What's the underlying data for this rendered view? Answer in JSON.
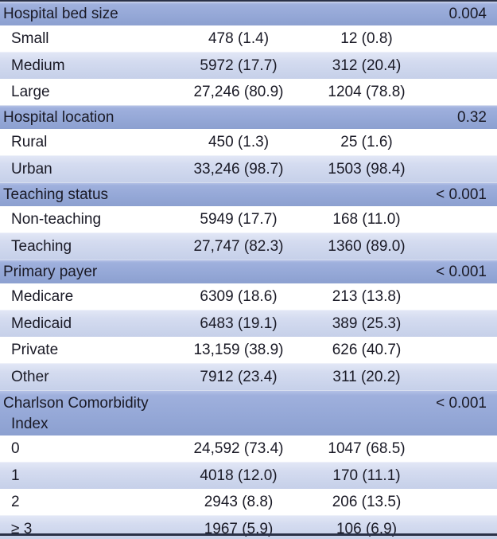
{
  "table": {
    "sections": [
      {
        "header": "Hospital bed size",
        "p_value": "0.004",
        "rows": [
          {
            "label": "Small",
            "v1": "478 (1.4)",
            "v2": "12 (0.8)"
          },
          {
            "label": "Medium",
            "v1": "5972 (17.7)",
            "v2": "312 (20.4)"
          },
          {
            "label": "Large",
            "v1": "27,246 (80.9)",
            "v2": "1204 (78.8)"
          }
        ]
      },
      {
        "header": "Hospital location",
        "p_value": "0.32",
        "rows": [
          {
            "label": "Rural",
            "v1": "450 (1.3)",
            "v2": "25 (1.6)"
          },
          {
            "label": "Urban",
            "v1": "33,246 (98.7)",
            "v2": "1503 (98.4)"
          }
        ]
      },
      {
        "header": "Teaching status",
        "p_value": "< 0.001",
        "rows": [
          {
            "label": "Non-teaching",
            "v1": "5949 (17.7)",
            "v2": "168 (11.0)"
          },
          {
            "label": "Teaching",
            "v1": "27,747 (82.3)",
            "v2": "1360 (89.0)"
          }
        ]
      },
      {
        "header": "Primary payer",
        "p_value": "< 0.001",
        "rows": [
          {
            "label": "Medicare",
            "v1": "6309 (18.6)",
            "v2": "213 (13.8)"
          },
          {
            "label": "Medicaid",
            "v1": "6483 (19.1)",
            "v2": "389 (25.3)"
          },
          {
            "label": "Private",
            "v1": "13,159 (38.9)",
            "v2": "626 (40.7)"
          },
          {
            "label": "Other",
            "v1": "7912 (23.4)",
            "v2": "311 (20.2)"
          }
        ]
      },
      {
        "header": "Charlson Comorbidity",
        "header_line2": "Index",
        "p_value": "< 0.001",
        "rows": [
          {
            "label": "0",
            "v1": "24,592 (73.4)",
            "v2": "1047 (68.5)"
          },
          {
            "label": "1",
            "v1": "4018 (12.0)",
            "v2": "170 (11.1)"
          },
          {
            "label": "2",
            "v1": "2943 (8.8)",
            "v2": "206 (13.5)"
          },
          {
            "label": "≥ 3",
            "v1": "1967 (5.9)",
            "v2": "106 (6.9)"
          }
        ]
      }
    ],
    "colors": {
      "header_bg": "#95a8d7",
      "shaded_row_bg": "#ccd5ec",
      "rule": "#2a3147",
      "text": "#1a1a26"
    }
  }
}
